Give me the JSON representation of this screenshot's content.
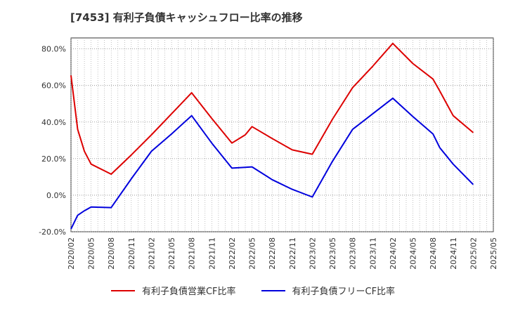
{
  "title": "[7453]  有利子負債キャッシュフロー比率の推移",
  "chart_data": {
    "type": "line",
    "title": "[7453]  有利子負債キャッシュフロー比率の推移",
    "x": [
      "2020/02",
      "2020/03",
      "2020/04",
      "2020/05",
      "2020/08",
      "2020/11",
      "2021/02",
      "2021/05",
      "2021/08",
      "2021/11",
      "2022/02",
      "2022/04",
      "2022/05",
      "2022/08",
      "2022/11",
      "2023/02",
      "2023/05",
      "2023/08",
      "2023/11",
      "2024/02",
      "2024/05",
      "2024/08",
      "2024/09",
      "2024/11",
      "2025/02"
    ],
    "x_ticks": [
      "2020/02",
      "2020/05",
      "2020/08",
      "2020/11",
      "2021/02",
      "2021/05",
      "2021/08",
      "2021/11",
      "2022/02",
      "2022/05",
      "2022/08",
      "2022/11",
      "2023/02",
      "2023/05",
      "2023/08",
      "2023/11",
      "2024/02",
      "2024/05",
      "2024/08",
      "2024/11",
      "2025/02",
      "2025/05"
    ],
    "y_ticks": [
      "-20.0%",
      "0.0%",
      "20.0%",
      "40.0%",
      "60.0%",
      "80.0%"
    ],
    "ylim": [
      -20,
      86
    ],
    "grid": true,
    "legend_position": "bottom",
    "series": [
      {
        "name": "有利子負債営業CF比率",
        "color": "#dd0000",
        "values": [
          65.5,
          36,
          24,
          17,
          11.5,
          22,
          33,
          44.5,
          56,
          42,
          28.5,
          33,
          37.5,
          31,
          24.8,
          22.4,
          41.5,
          58.8,
          70.5,
          83,
          72,
          63.5,
          57,
          43.5,
          34.2
        ]
      },
      {
        "name": "有利子負債フリーCF比率",
        "color": "#0000dd",
        "values": [
          -18.5,
          -11,
          -8.5,
          -6.5,
          -6.8,
          9,
          24,
          33.5,
          43.5,
          28.5,
          14.8,
          15.2,
          15.5,
          8.5,
          3.2,
          -1,
          18.5,
          36,
          44.5,
          53,
          43,
          33.5,
          26,
          17,
          5.8
        ]
      }
    ]
  }
}
